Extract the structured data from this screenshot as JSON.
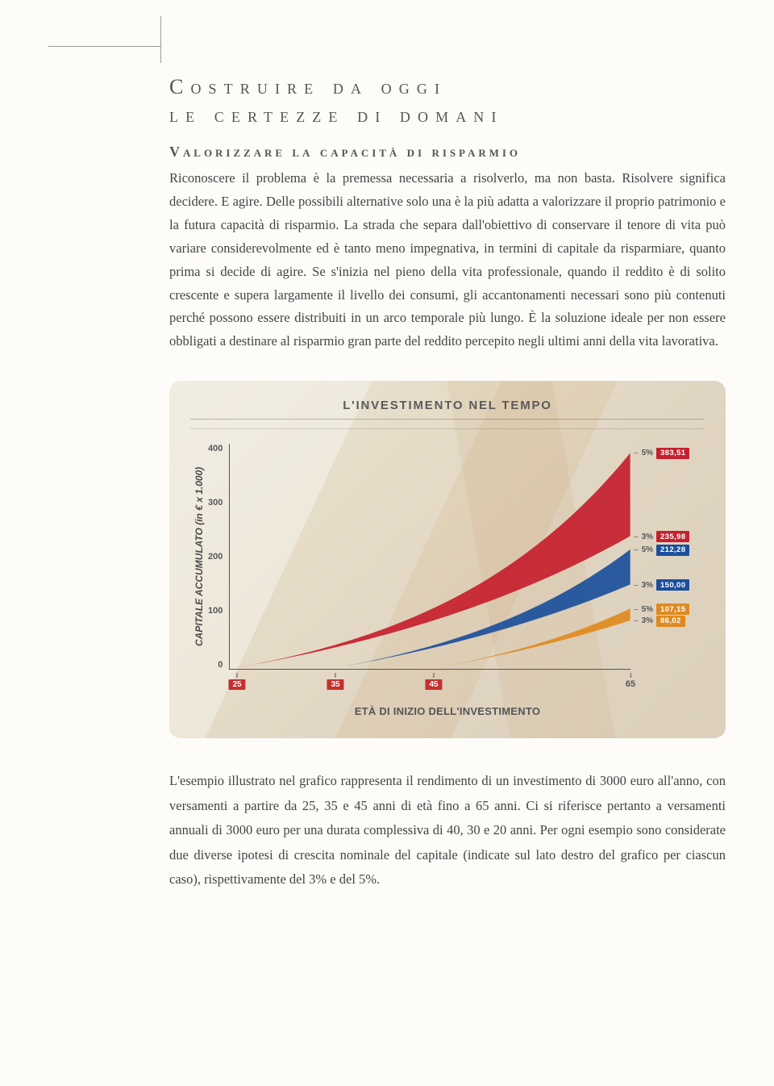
{
  "heading": {
    "line1": "Costruire da oggi",
    "line2": "le certezze di domani"
  },
  "subtitle": "Valorizzare la capacità di risparmio",
  "paragraph": "Riconoscere il problema è la premessa necessaria a risolverlo, ma non basta. Risolvere significa decidere. E agire. Delle possibili alternative solo una è la più adatta a valorizzare il proprio patrimonio e la futura capacità di risparmio. La strada che separa dall'obiettivo di conservare il tenore di vita può variare considerevolmente ed è tanto meno impegnativa, in termini di capitale da risparmiare, quanto prima si decide di agire. Se s'inizia nel pieno della vita professionale, quando il reddito è di solito crescente e supera largamente il livello dei consumi, gli accantonamenti necessari sono più contenuti perché possono essere distribuiti in un arco temporale più lungo. È la soluzione ideale per non essere obbligati a destinare al risparmio gran parte del reddito percepito negli ultimi anni della vita lavorativa.",
  "chart": {
    "title": "L'INVESTIMENTO NEL TEMPO",
    "ylabel": "CAPITALE ACCUMULATO (in € x 1.000)",
    "xlabel": "ETÀ DI INIZIO DELL'INVESTIMENTO",
    "ymin": 0,
    "ymax": 400,
    "yticks": [
      "400",
      "300",
      "200",
      "100",
      "0"
    ],
    "xmin": 25,
    "xmax": 65,
    "xticks": [
      {
        "value": 25,
        "label": "25",
        "badge": true
      },
      {
        "value": 35,
        "label": "35",
        "badge": true
      },
      {
        "value": 45,
        "label": "45",
        "badge": true
      },
      {
        "value": 65,
        "label": "65",
        "badge": false
      }
    ],
    "series": [
      {
        "name": "age25-5pct",
        "color": "#c6202e",
        "start_age": 25,
        "end_value_top": 383.51,
        "end_value_bottom": 235.98
      },
      {
        "name": "age35-band",
        "color": "#1b4f9c",
        "start_age": 35,
        "end_value_top": 212.28,
        "end_value_bottom": 150.0
      },
      {
        "name": "age45-band",
        "color": "#e08a1e",
        "start_age": 45,
        "end_value_top": 107.15,
        "end_value_bottom": 86.02
      }
    ],
    "end_labels": [
      {
        "pct": "5%",
        "value": "383,51",
        "y": 383.51,
        "color": "#c6202e"
      },
      {
        "pct": "3%",
        "value": "235,98",
        "y": 235.98,
        "color": "#c6202e"
      },
      {
        "pct": "5%",
        "value": "212,28",
        "y": 212.28,
        "color": "#1b4f9c"
      },
      {
        "pct": "3%",
        "value": "150,00",
        "y": 150.0,
        "color": "#1b4f9c"
      },
      {
        "pct": "5%",
        "value": "107,15",
        "y": 107.15,
        "color": "#e08a1e"
      },
      {
        "pct": "3%",
        "value": "86,02",
        "y": 86.02,
        "color": "#e08a1e"
      }
    ],
    "colors": {
      "background": "#e6ddc9",
      "axis": "#555555",
      "badge": "#c62f2f"
    }
  },
  "footer_paragraph": "L'esempio illustrato nel grafico rappresenta il rendimento di un investimento di 3000 euro all'anno, con versamenti a partire da 25, 35 e 45 anni di età fino a 65 anni. Ci si riferisce pertanto a versamenti annuali di 3000 euro per una durata complessiva di 40, 30 e 20 anni. Per ogni esempio sono considerate due diverse ipotesi di crescita nominale del capitale (indicate sul lato destro del grafico per ciascun caso), rispettivamente del 3% e del 5%."
}
